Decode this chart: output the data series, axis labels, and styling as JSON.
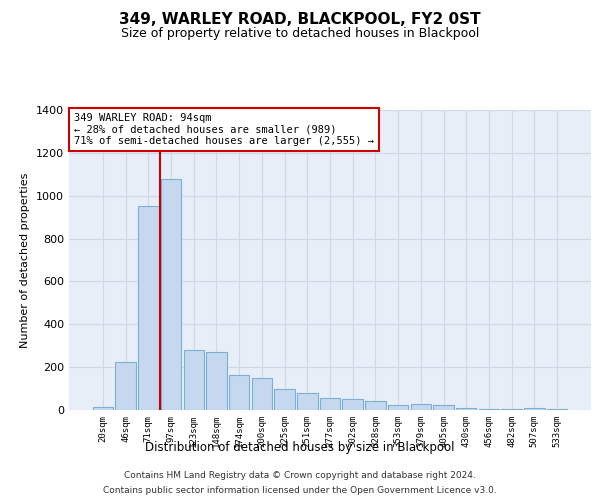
{
  "title": "349, WARLEY ROAD, BLACKPOOL, FY2 0ST",
  "subtitle": "Size of property relative to detached houses in Blackpool",
  "xlabel": "Distribution of detached houses by size in Blackpool",
  "ylabel": "Number of detached properties",
  "footer_line1": "Contains HM Land Registry data © Crown copyright and database right 2024.",
  "footer_line2": "Contains public sector information licensed under the Open Government Licence v3.0.",
  "bar_labels": [
    "20sqm",
    "46sqm",
    "71sqm",
    "97sqm",
    "123sqm",
    "148sqm",
    "174sqm",
    "200sqm",
    "225sqm",
    "251sqm",
    "277sqm",
    "302sqm",
    "328sqm",
    "353sqm",
    "379sqm",
    "405sqm",
    "430sqm",
    "456sqm",
    "482sqm",
    "507sqm",
    "533sqm"
  ],
  "bar_values": [
    15,
    225,
    950,
    1080,
    280,
    270,
    165,
    150,
    100,
    80,
    55,
    50,
    40,
    25,
    30,
    25,
    10,
    5,
    5,
    10,
    5
  ],
  "bar_color": "#c5d8f0",
  "bar_edge_color": "#7bafd4",
  "ylim": [
    0,
    1400
  ],
  "yticks": [
    0,
    200,
    400,
    600,
    800,
    1000,
    1200,
    1400
  ],
  "red_line_x": 2.5,
  "annotation_text": "349 WARLEY ROAD: 94sqm\n← 28% of detached houses are smaller (989)\n71% of semi-detached houses are larger (2,555) →",
  "annotation_box_color": "#ffffff",
  "annotation_border_color": "#cc0000",
  "grid_color": "#d0d8e8",
  "background_color": "#e8eef8",
  "title_fontsize": 11,
  "subtitle_fontsize": 9
}
